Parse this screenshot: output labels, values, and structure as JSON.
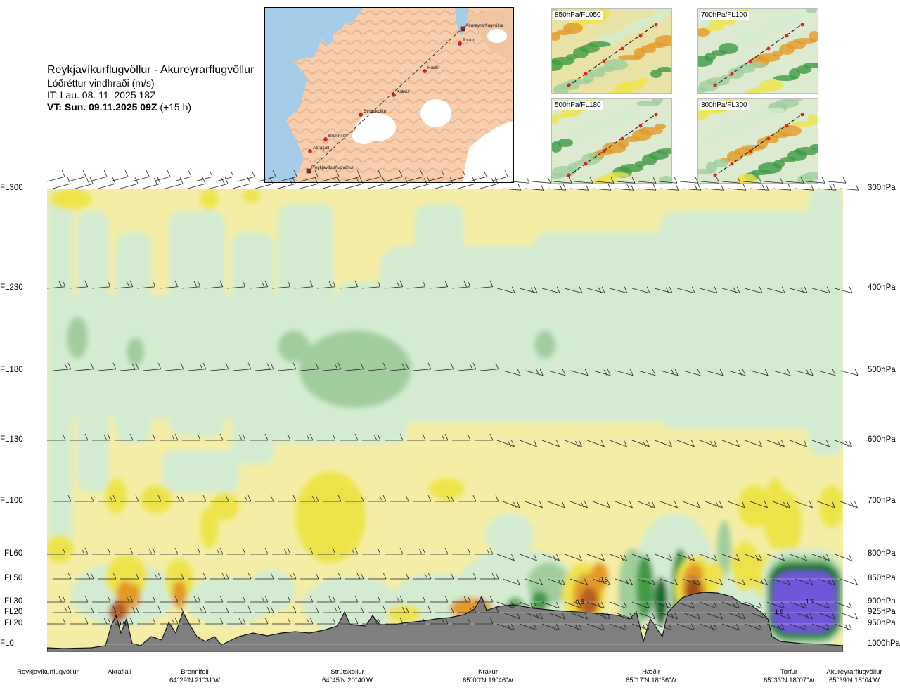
{
  "title": {
    "route": "Reykjavíkurflugvöllur - Akureyrarflugvöllur",
    "quantity": "Lóðréttur vindhraði (m/s)",
    "issue_time": "IT: Lau. 08. 11. 2025 18Z",
    "valid_label": "VT: Sun. 09.11.2025 09Z",
    "valid_offset": "(+15 h)"
  },
  "route_map": {
    "waypoints": [
      {
        "name": "Akureyrarflugvöllur"
      },
      {
        "name": "Torfur"
      },
      {
        "name": "Hæðir"
      },
      {
        "name": "Krákur"
      },
      {
        "name": "Strútskollur"
      },
      {
        "name": "Brennifell"
      },
      {
        "name": "Akrafjall"
      },
      {
        "name": "Reykjavíkurflugvöllur"
      }
    ]
  },
  "mini_maps": [
    {
      "label": "850hPa/FL050"
    },
    {
      "label": "700hPa/FL100"
    },
    {
      "label": "500hPa/FL180"
    },
    {
      "label": "300hPa/FL300"
    }
  ],
  "chart_data": {
    "type": "heatmap",
    "title": "Lóðréttur vindhraði (m/s)",
    "levels": [
      {
        "fl": "FL300",
        "hpa": "300hPa"
      },
      {
        "fl": "FL230",
        "hpa": "400hPa"
      },
      {
        "fl": "FL180",
        "hpa": "500hPa"
      },
      {
        "fl": "FL130",
        "hpa": "600hPa"
      },
      {
        "fl": "FL100",
        "hpa": "700hPa"
      },
      {
        "fl": "FL60",
        "hpa": "800hPa"
      },
      {
        "fl": "FL50",
        "hpa": "850hPa"
      },
      {
        "fl": "FL30",
        "hpa": "900hPa"
      },
      {
        "fl": "FL20",
        "hpa": "925hPa"
      },
      {
        "fl": "FL20",
        "hpa": "950hPa"
      },
      {
        "fl": "FL0",
        "hpa": "1000hPa"
      }
    ],
    "waypoints": [
      {
        "name": "Reykjavíkurflugvöllur",
        "coord": ""
      },
      {
        "name": "Akrafjall",
        "coord": ""
      },
      {
        "name": "Brennifell",
        "coord": "64°29'N 21°31'W"
      },
      {
        "name": "Strútskollur",
        "coord": "64°45'N 20°40'W"
      },
      {
        "name": "Krákur",
        "coord": "65°00'N 19°46'W"
      },
      {
        "name": "Hæðir",
        "coord": "65°17'N 18°56'W"
      },
      {
        "name": "Torfur",
        "coord": "65°33'N 18°07'W"
      },
      {
        "name": "Akureyrarflugvöllur",
        "coord": "65°39'N 18°04'W"
      }
    ],
    "annotations": [
      "-0.5",
      "-0.5",
      "-0.5",
      "1.9",
      "1.9"
    ],
    "colors": {
      "strong_down": "#9a4f1a",
      "mod_down": "#e39a27",
      "weak_down": "#ede349",
      "faint_down": "#f5eda5",
      "neutral": "#fcfce8",
      "faint_up": "#d3ecd1",
      "weak_up": "#9fce9c",
      "mod_up": "#3f9a44",
      "strong_up": "#136b25",
      "very_strong_up": "#6f56d8",
      "terrain": "#7f7f7f"
    }
  }
}
